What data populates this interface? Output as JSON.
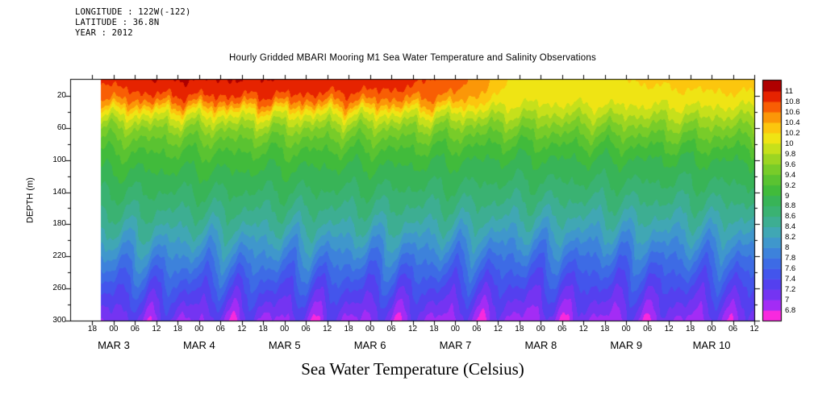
{
  "meta": {
    "longitude": "LONGITUDE : 122W(-122)",
    "latitude": "LATITUDE : 36.8N",
    "year": "YEAR : 2012"
  },
  "chart_data": {
    "type": "heatmap",
    "title": "Hourly Gridded MBARI Mooring M1 Sea Water Temperature and Salinity Observations",
    "xlabel": "Sea Water Temperature (Celsius)",
    "ylabel": "DEPTH (m)",
    "gridlines": false,
    "legend_position": "right-colorbar",
    "y_range": [
      0,
      300
    ],
    "y_ticks": [
      20,
      60,
      100,
      140,
      180,
      220,
      260,
      300
    ],
    "x_range_days": [
      -0.5,
      7.5
    ],
    "first_tick_day": -0.25,
    "tick_interval_days": 0.25,
    "data_start_day": -0.15,
    "x_time_tick_labels": [
      "18",
      "00",
      "06",
      "12",
      "18",
      "00",
      "06",
      "12",
      "18",
      "00",
      "06",
      "12",
      "18",
      "00",
      "06",
      "12",
      "18",
      "00",
      "06",
      "12",
      "18",
      "00",
      "06",
      "12",
      "18",
      "00",
      "06",
      "12",
      "18",
      "00",
      "06",
      "12"
    ],
    "x_date_labels": [
      "MAR 3",
      "MAR 4",
      "MAR 5",
      "MAR 6",
      "MAR 7",
      "MAR 8",
      "MAR 9",
      "MAR 10"
    ],
    "colorbar": {
      "unit": "Celsius",
      "level_step": 0.2,
      "min_level": 6.8,
      "max_level": 11,
      "label_values": [
        "11",
        "10.8",
        "10.6",
        "10.4",
        "10.2",
        "10",
        "9.8",
        "9.6",
        "9.4",
        "9.2",
        "9",
        "8.8",
        "8.6",
        "8.4",
        "8.2",
        "8",
        "7.8",
        "7.6",
        "7.4",
        "7.2",
        "7",
        "6.8"
      ],
      "colors": [
        "#F829DE",
        "#A32CF5",
        "#7434F2",
        "#5440EF",
        "#4355EC",
        "#3D6BE5",
        "#3D82DB",
        "#3F97CC",
        "#40A7B4",
        "#3DAE92",
        "#3AB272",
        "#38B457",
        "#41BB3B",
        "#5AC331",
        "#78CC29",
        "#9CD522",
        "#C6E01B",
        "#EFE414",
        "#FCC60E",
        "#FB9708",
        "#F85E04",
        "#E62300",
        "#AF0000"
      ]
    },
    "field": {
      "time_days": [
        -0.15,
        0.5,
        1.5,
        2.5,
        3.5,
        4.0,
        4.35,
        4.7,
        5.5,
        6.5,
        7.5
      ],
      "depths": [
        0,
        10,
        20,
        30,
        40,
        60,
        80,
        100,
        140,
        180,
        220,
        260,
        300
      ],
      "temps": [
        [
          10.8,
          10.75,
          10.65,
          10.45,
          10.1,
          9.6,
          9.3,
          9.1,
          8.8,
          8.5,
          8.0,
          7.5,
          7.1
        ],
        [
          11.0,
          10.92,
          10.78,
          10.52,
          10.12,
          9.62,
          9.32,
          9.1,
          8.8,
          8.47,
          7.97,
          7.47,
          7.05
        ],
        [
          11.0,
          10.95,
          10.8,
          10.55,
          10.15,
          9.65,
          9.32,
          9.1,
          8.8,
          8.45,
          7.95,
          7.45,
          7.0
        ],
        [
          10.95,
          10.9,
          10.75,
          10.5,
          10.1,
          9.62,
          9.3,
          9.06,
          8.78,
          8.42,
          7.92,
          7.42,
          7.0
        ],
        [
          10.85,
          10.8,
          10.66,
          10.45,
          10.08,
          9.6,
          9.28,
          9.05,
          8.76,
          8.4,
          7.88,
          7.4,
          6.99
        ],
        [
          10.7,
          10.66,
          10.56,
          10.35,
          10.02,
          9.56,
          9.25,
          9.02,
          8.75,
          8.38,
          7.86,
          7.38,
          6.97
        ],
        [
          10.45,
          10.42,
          10.32,
          10.16,
          9.95,
          9.51,
          9.22,
          9.0,
          8.72,
          8.35,
          7.84,
          7.36,
          6.95
        ],
        [
          10.12,
          10.11,
          10.08,
          9.99,
          9.85,
          9.49,
          9.2,
          8.98,
          8.7,
          8.32,
          7.8,
          7.33,
          6.95
        ],
        [
          10.18,
          10.17,
          10.13,
          10.02,
          9.87,
          9.52,
          9.22,
          9.0,
          8.7,
          8.31,
          7.8,
          7.35,
          6.96
        ],
        [
          10.22,
          10.2,
          10.15,
          10.04,
          9.89,
          9.55,
          9.25,
          9.0,
          8.71,
          8.33,
          7.82,
          7.36,
          6.98
        ],
        [
          10.28,
          10.25,
          10.18,
          10.06,
          9.91,
          9.57,
          9.27,
          9.02,
          8.72,
          8.34,
          7.84,
          7.38,
          7.0
        ]
      ]
    }
  }
}
